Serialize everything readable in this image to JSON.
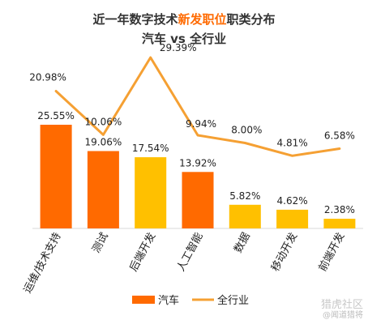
{
  "title": {
    "line1_prefix": "近一年数字技术",
    "line1_highlight": "新发职位",
    "line1_suffix": "职类分布",
    "line2": "汽车 vs 全行业"
  },
  "watermark": {
    "brand": "猎虎社区",
    "handle": "@闻道猎将"
  },
  "colors": {
    "title_text": "#333333",
    "title_highlight": "#ff6a00",
    "bar_top2": "#ff6a00",
    "bar_mid": "#ffc000",
    "line": "#f5a033",
    "label_text": "#222222"
  },
  "chart_data": {
    "type": "bar",
    "categories": [
      "运维/技术支持",
      "测试",
      "后端开发",
      "人工智能",
      "数据",
      "移动开发",
      "前端开发"
    ],
    "series": [
      {
        "name": "汽车",
        "type": "bar",
        "values": [
          25.55,
          19.06,
          17.54,
          13.92,
          5.82,
          4.62,
          2.38
        ],
        "labels": [
          "25.55%",
          "19.06%",
          "17.54%",
          "13.92%",
          "5.82%",
          "4.62%",
          "2.38%"
        ],
        "colors": [
          "#ff6a00",
          "#ff6a00",
          "#ffc000",
          "#ff6a00",
          "#ffc000",
          "#ffc000",
          "#ffc000"
        ]
      },
      {
        "name": "全行业",
        "type": "line",
        "values": [
          20.98,
          10.06,
          29.39,
          9.94,
          8.0,
          4.81,
          6.58
        ],
        "labels": [
          "20.98%",
          "10.06%",
          "29.39%",
          "9.94%",
          "8.00%",
          "4.81%",
          "6.58%"
        ]
      }
    ],
    "legend": {
      "position": "bottom",
      "items": [
        "汽车",
        "全行业"
      ]
    },
    "grid": false
  }
}
